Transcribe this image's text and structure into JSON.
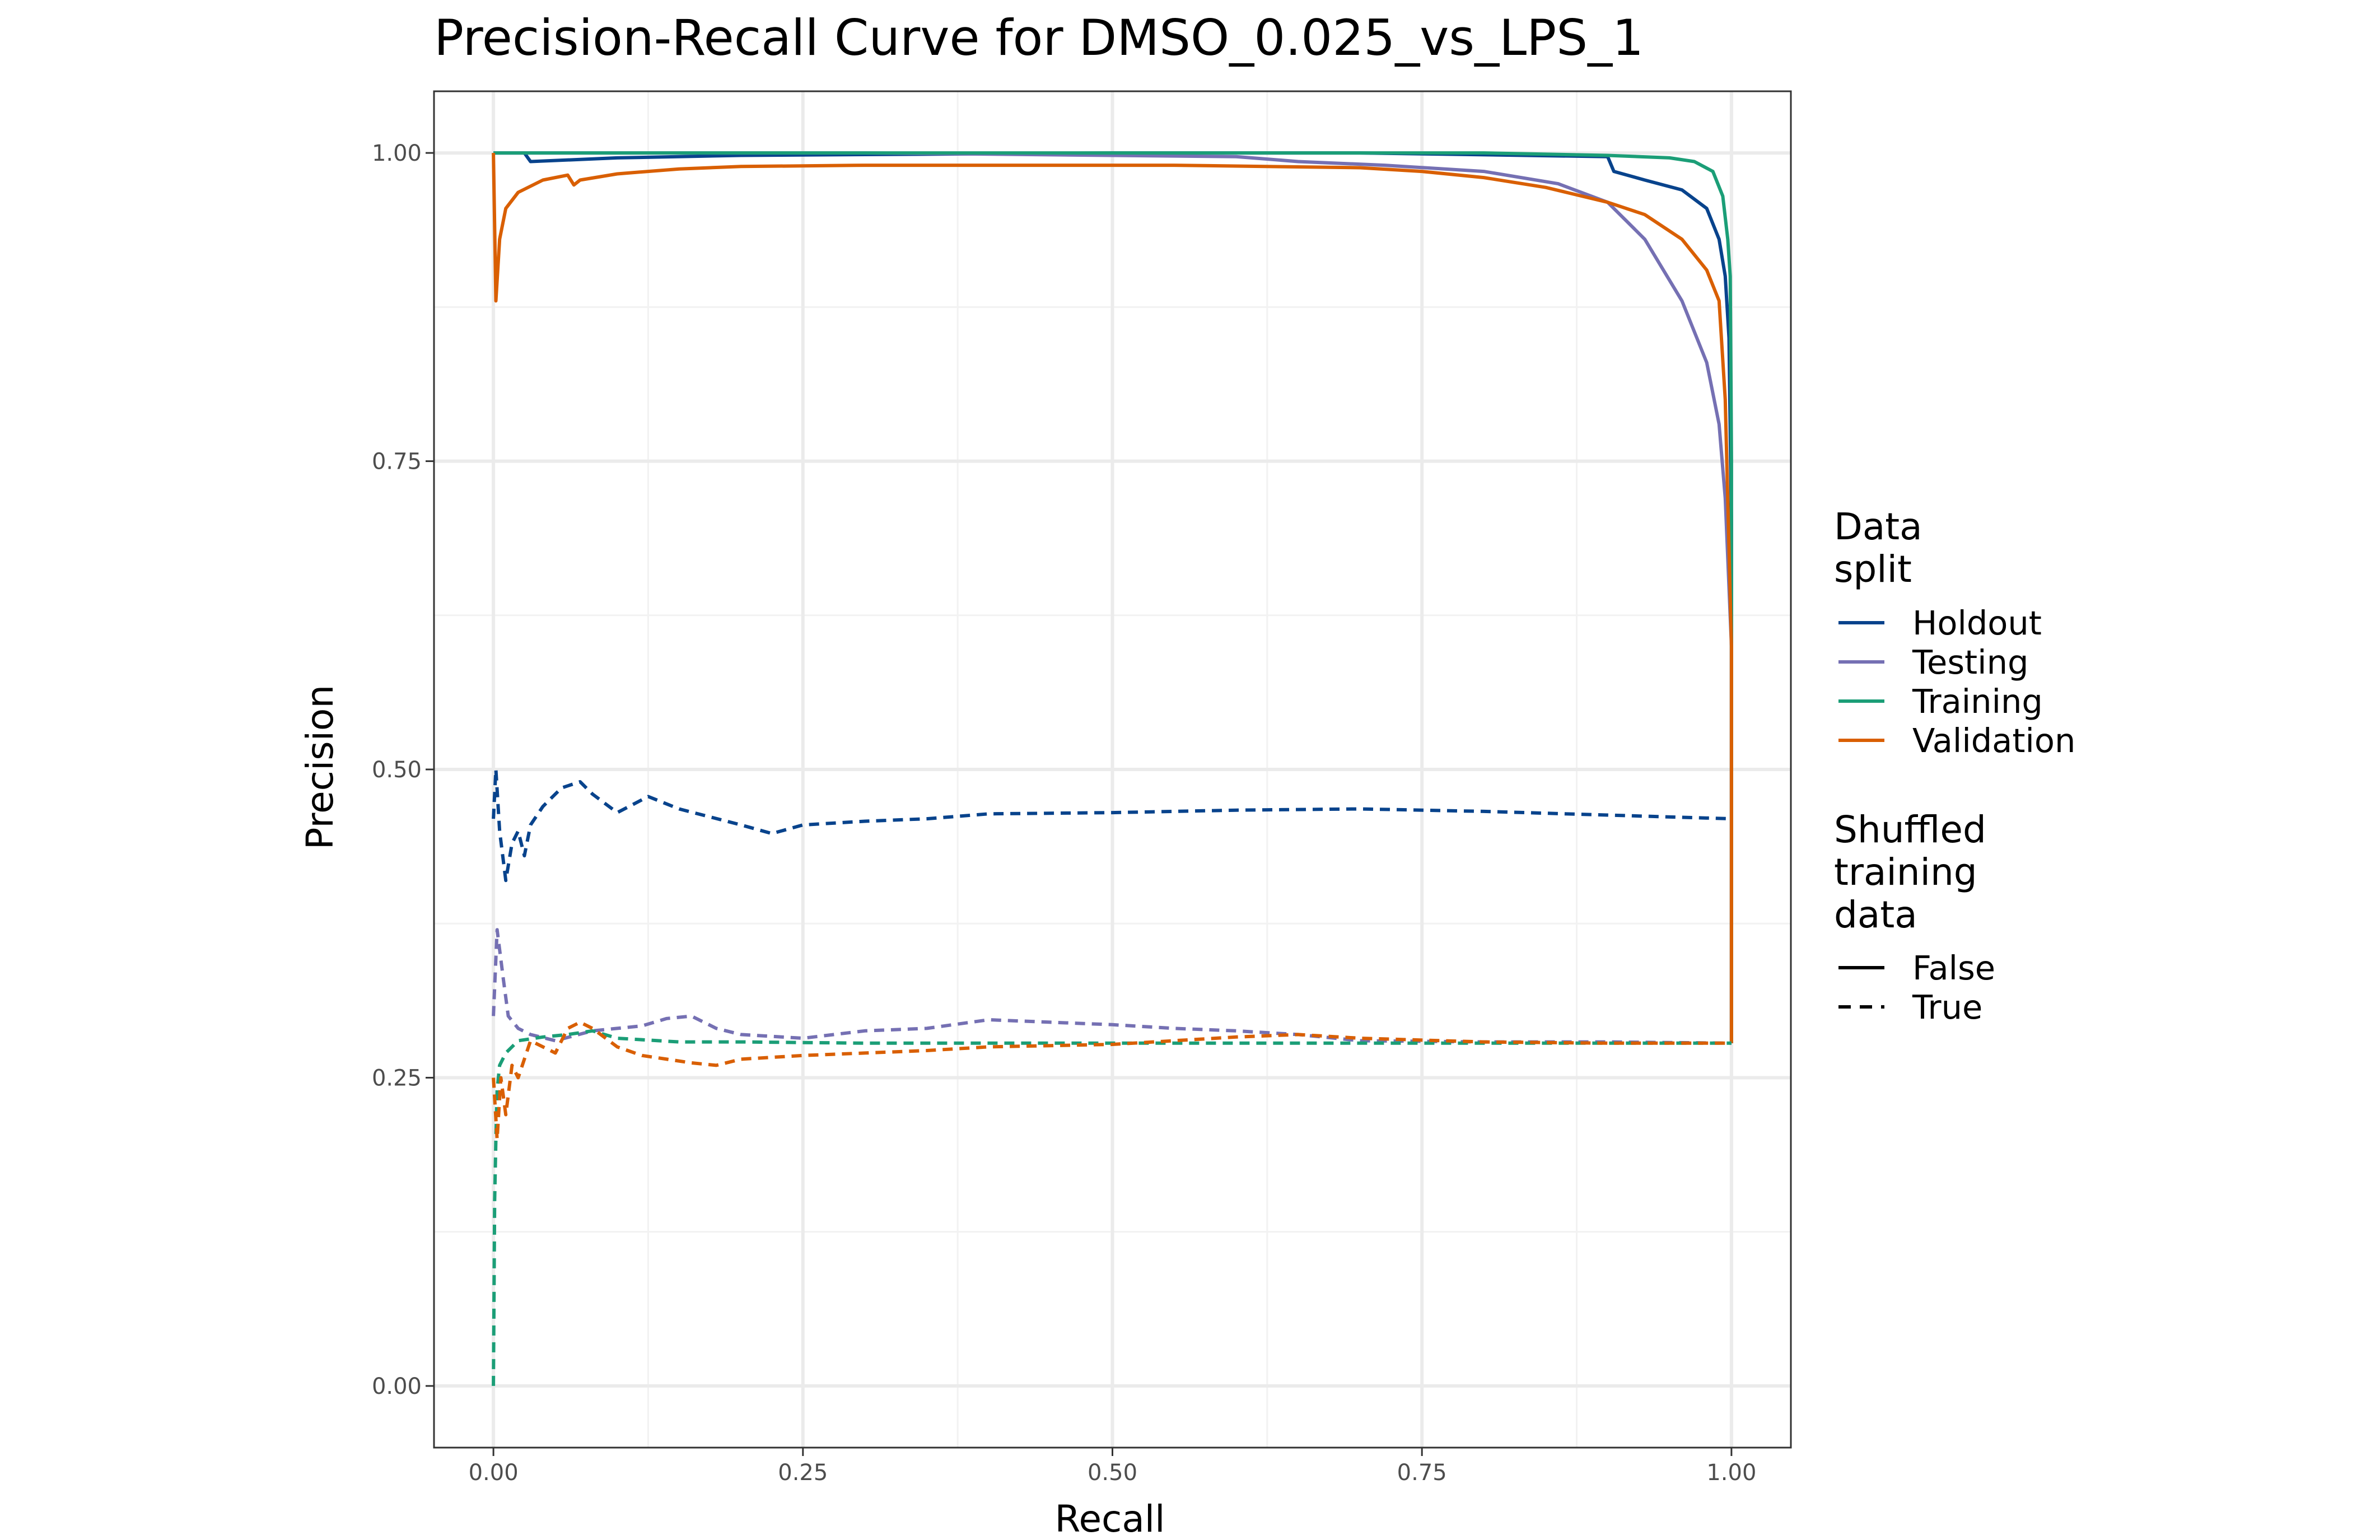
{
  "chart_data": {
    "type": "line",
    "title": "Precision-Recall Curve for DMSO_0.025_vs_LPS_1",
    "xlabel": "Recall",
    "ylabel": "Precision",
    "xlim": [
      -0.048,
      1.048
    ],
    "ylim": [
      -0.05,
      1.05
    ],
    "x_ticks": [
      0.0,
      0.25,
      0.5,
      0.75,
      1.0
    ],
    "x_tick_labels": [
      "0.00",
      "0.25",
      "0.50",
      "0.75",
      "1.00"
    ],
    "y_ticks": [
      0.0,
      0.25,
      0.5,
      0.75,
      1.0
    ],
    "y_tick_labels": [
      "0.00",
      "0.25",
      "0.50",
      "0.75",
      "1.00"
    ],
    "grid": true,
    "legend_placement": "right",
    "legend": {
      "color_title": "Data\nsplit",
      "color_entries": [
        {
          "label": "Holdout",
          "color": "#08438c"
        },
        {
          "label": "Testing",
          "color": "#7570b3"
        },
        {
          "label": "Training",
          "color": "#1b9e77"
        },
        {
          "label": "Validation",
          "color": "#d95f02"
        }
      ],
      "linetype_title": "Shuffled\ntraining\ndata",
      "linetype_entries": [
        {
          "label": "False",
          "dash": "solid"
        },
        {
          "label": "True",
          "dash": "dashed"
        }
      ]
    },
    "series": [
      {
        "split": "Holdout",
        "shuffled": false,
        "color": "#08438c",
        "points": [
          [
            0,
            1.0
          ],
          [
            0.025,
            1.0
          ],
          [
            0.03,
            0.993
          ],
          [
            0.1,
            0.996
          ],
          [
            0.2,
            0.998
          ],
          [
            0.5,
            1.0
          ],
          [
            0.7,
            1.0
          ],
          [
            0.9,
            0.997
          ],
          [
            0.905,
            0.985
          ],
          [
            0.93,
            0.978
          ],
          [
            0.96,
            0.97
          ],
          [
            0.98,
            0.955
          ],
          [
            0.99,
            0.93
          ],
          [
            0.995,
            0.9
          ],
          [
            0.998,
            0.85
          ],
          [
            1.0,
            0.7
          ],
          [
            1.0,
            0.278
          ]
        ]
      },
      {
        "split": "Testing",
        "shuffled": false,
        "color": "#7570b3",
        "points": [
          [
            0,
            1.0
          ],
          [
            0.3,
            1.0
          ],
          [
            0.6,
            0.997
          ],
          [
            0.65,
            0.993
          ],
          [
            0.72,
            0.99
          ],
          [
            0.8,
            0.985
          ],
          [
            0.86,
            0.975
          ],
          [
            0.9,
            0.96
          ],
          [
            0.93,
            0.93
          ],
          [
            0.96,
            0.88
          ],
          [
            0.98,
            0.83
          ],
          [
            0.99,
            0.78
          ],
          [
            0.995,
            0.72
          ],
          [
            1.0,
            0.6
          ],
          [
            1.0,
            0.278
          ]
        ]
      },
      {
        "split": "Training",
        "shuffled": false,
        "color": "#1b9e77",
        "points": [
          [
            0,
            1.0
          ],
          [
            0.5,
            1.0
          ],
          [
            0.8,
            1.0
          ],
          [
            0.9,
            0.998
          ],
          [
            0.95,
            0.996
          ],
          [
            0.97,
            0.993
          ],
          [
            0.985,
            0.985
          ],
          [
            0.993,
            0.965
          ],
          [
            0.997,
            0.93
          ],
          [
            0.999,
            0.9
          ],
          [
            1.0,
            0.75
          ],
          [
            1.0,
            0.278
          ]
        ]
      },
      {
        "split": "Validation",
        "shuffled": false,
        "color": "#d95f02",
        "points": [
          [
            0,
            1.0
          ],
          [
            0.002,
            0.88
          ],
          [
            0.005,
            0.93
          ],
          [
            0.01,
            0.955
          ],
          [
            0.02,
            0.968
          ],
          [
            0.04,
            0.978
          ],
          [
            0.06,
            0.982
          ],
          [
            0.065,
            0.974
          ],
          [
            0.07,
            0.978
          ],
          [
            0.1,
            0.983
          ],
          [
            0.15,
            0.987
          ],
          [
            0.2,
            0.989
          ],
          [
            0.3,
            0.99
          ],
          [
            0.45,
            0.99
          ],
          [
            0.55,
            0.99
          ],
          [
            0.7,
            0.988
          ],
          [
            0.75,
            0.985
          ],
          [
            0.8,
            0.98
          ],
          [
            0.85,
            0.972
          ],
          [
            0.9,
            0.96
          ],
          [
            0.93,
            0.95
          ],
          [
            0.96,
            0.93
          ],
          [
            0.98,
            0.905
          ],
          [
            0.99,
            0.88
          ],
          [
            0.995,
            0.8
          ],
          [
            1.0,
            0.6
          ],
          [
            1.0,
            0.278
          ]
        ]
      },
      {
        "split": "Holdout",
        "shuffled": true,
        "color": "#08438c",
        "points": [
          [
            0,
            0.46
          ],
          [
            0.002,
            0.5
          ],
          [
            0.005,
            0.45
          ],
          [
            0.01,
            0.41
          ],
          [
            0.015,
            0.44
          ],
          [
            0.02,
            0.45
          ],
          [
            0.025,
            0.43
          ],
          [
            0.03,
            0.455
          ],
          [
            0.04,
            0.47
          ],
          [
            0.055,
            0.485
          ],
          [
            0.07,
            0.49
          ],
          [
            0.08,
            0.48
          ],
          [
            0.1,
            0.465
          ],
          [
            0.125,
            0.478
          ],
          [
            0.15,
            0.468
          ],
          [
            0.2,
            0.455
          ],
          [
            0.225,
            0.448
          ],
          [
            0.25,
            0.455
          ],
          [
            0.3,
            0.458
          ],
          [
            0.35,
            0.46
          ],
          [
            0.4,
            0.464
          ],
          [
            0.5,
            0.465
          ],
          [
            0.6,
            0.467
          ],
          [
            0.7,
            0.468
          ],
          [
            0.8,
            0.466
          ],
          [
            0.9,
            0.463
          ],
          [
            1.0,
            0.46
          ]
        ]
      },
      {
        "split": "Testing",
        "shuffled": true,
        "color": "#7570b3",
        "points": [
          [
            0,
            0.3
          ],
          [
            0.003,
            0.37
          ],
          [
            0.008,
            0.33
          ],
          [
            0.012,
            0.3
          ],
          [
            0.02,
            0.29
          ],
          [
            0.03,
            0.285
          ],
          [
            0.05,
            0.28
          ],
          [
            0.08,
            0.288
          ],
          [
            0.1,
            0.29
          ],
          [
            0.12,
            0.292
          ],
          [
            0.14,
            0.298
          ],
          [
            0.16,
            0.3
          ],
          [
            0.18,
            0.29
          ],
          [
            0.2,
            0.285
          ],
          [
            0.25,
            0.282
          ],
          [
            0.3,
            0.288
          ],
          [
            0.35,
            0.29
          ],
          [
            0.4,
            0.297
          ],
          [
            0.45,
            0.295
          ],
          [
            0.5,
            0.293
          ],
          [
            0.55,
            0.29
          ],
          [
            0.6,
            0.288
          ],
          [
            0.65,
            0.285
          ],
          [
            0.7,
            0.28
          ],
          [
            0.8,
            0.279
          ],
          [
            0.9,
            0.279
          ],
          [
            1.0,
            0.278
          ]
        ]
      },
      {
        "split": "Training",
        "shuffled": true,
        "color": "#1b9e77",
        "points": [
          [
            0,
            0.0
          ],
          [
            0.001,
            0.15
          ],
          [
            0.002,
            0.2
          ],
          [
            0.003,
            0.24
          ],
          [
            0.005,
            0.26
          ],
          [
            0.01,
            0.27
          ],
          [
            0.02,
            0.28
          ],
          [
            0.04,
            0.283
          ],
          [
            0.06,
            0.285
          ],
          [
            0.08,
            0.288
          ],
          [
            0.1,
            0.282
          ],
          [
            0.15,
            0.279
          ],
          [
            0.2,
            0.279
          ],
          [
            0.3,
            0.278
          ],
          [
            0.5,
            0.278
          ],
          [
            0.7,
            0.278
          ],
          [
            0.9,
            0.278
          ],
          [
            1.0,
            0.278
          ]
        ]
      },
      {
        "split": "Validation",
        "shuffled": true,
        "color": "#d95f02",
        "points": [
          [
            0,
            0.25
          ],
          [
            0.003,
            0.2
          ],
          [
            0.006,
            0.25
          ],
          [
            0.01,
            0.22
          ],
          [
            0.015,
            0.26
          ],
          [
            0.02,
            0.25
          ],
          [
            0.03,
            0.28
          ],
          [
            0.05,
            0.27
          ],
          [
            0.06,
            0.29
          ],
          [
            0.07,
            0.295
          ],
          [
            0.08,
            0.29
          ],
          [
            0.1,
            0.275
          ],
          [
            0.12,
            0.268
          ],
          [
            0.14,
            0.265
          ],
          [
            0.16,
            0.262
          ],
          [
            0.18,
            0.26
          ],
          [
            0.2,
            0.265
          ],
          [
            0.25,
            0.268
          ],
          [
            0.3,
            0.27
          ],
          [
            0.35,
            0.272
          ],
          [
            0.4,
            0.275
          ],
          [
            0.5,
            0.277
          ],
          [
            0.55,
            0.28
          ],
          [
            0.6,
            0.283
          ],
          [
            0.65,
            0.285
          ],
          [
            0.7,
            0.282
          ],
          [
            0.8,
            0.279
          ],
          [
            0.9,
            0.278
          ],
          [
            1.0,
            0.278
          ]
        ]
      }
    ]
  }
}
